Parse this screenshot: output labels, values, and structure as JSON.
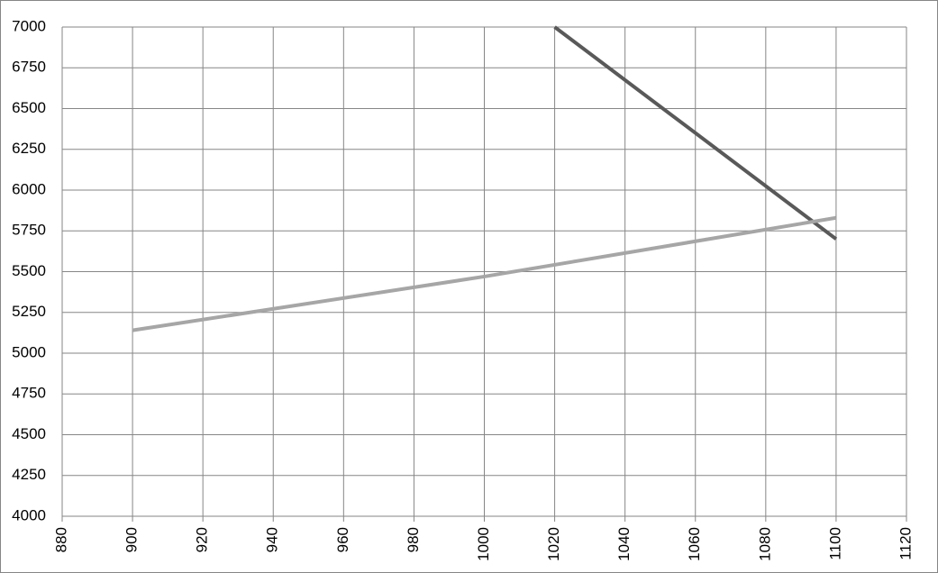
{
  "chart_data": {
    "type": "line",
    "series": [
      {
        "color": "#595959",
        "x": [
          1020,
          1100
        ],
        "values": [
          7000,
          5700
        ]
      },
      {
        "color": "#a6a6a6",
        "x": [
          900,
          1000,
          1100
        ],
        "values": [
          5140,
          5470,
          5830
        ]
      }
    ],
    "xlim": [
      880,
      1120
    ],
    "xticks": [
      880,
      900,
      920,
      940,
      960,
      980,
      1000,
      1020,
      1040,
      1060,
      1080,
      1100,
      1120
    ],
    "ylim": [
      4000,
      7000
    ],
    "yticks": [
      4000,
      4250,
      4500,
      4750,
      5000,
      5250,
      5500,
      5750,
      6000,
      6250,
      6500,
      6750,
      7000
    ],
    "grid": true
  }
}
